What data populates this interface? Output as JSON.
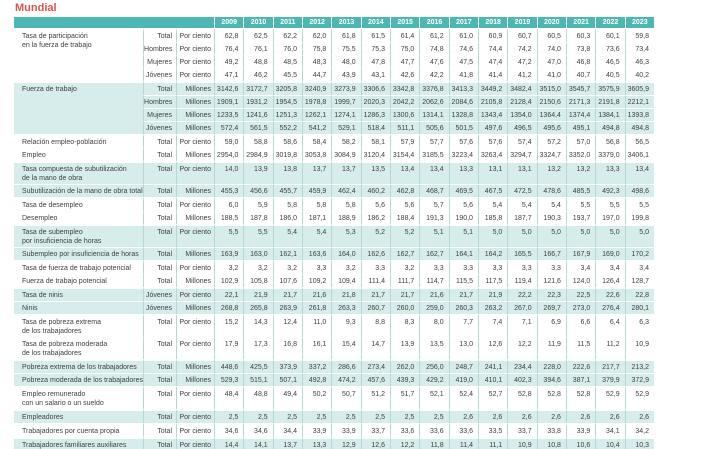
{
  "title": "Mundial",
  "theme": {
    "header_bg": "#4db7b4",
    "band_bg": "#d6edec",
    "title_color": "#d9534f",
    "text_color": "#3f3f3f",
    "grid_line": "#b7d6d8"
  },
  "table": {
    "years": [
      "2009",
      "2010",
      "2011",
      "2012",
      "2013",
      "2014",
      "2015",
      "2016",
      "2017",
      "2018",
      "2019",
      "2020",
      "2021",
      "2022",
      "2023"
    ],
    "rows": [
      {
        "label": "Tasa de participación\nen la fuerza de trabajo",
        "rowspan": 4,
        "group": "Total",
        "unit": "Por ciento",
        "band": false,
        "group_start": true,
        "values": [
          "62,8",
          "62,5",
          "62,2",
          "62,0",
          "61,8",
          "61,5",
          "61,4",
          "61,2",
          "61,0",
          "60,9",
          "60,7",
          "60,5",
          "60,3",
          "60,1",
          "59,8"
        ]
      },
      {
        "group": "Hombres",
        "unit": "Por ciento",
        "band": false,
        "values": [
          "76,4",
          "76,1",
          "76,0",
          "75,8",
          "75,5",
          "75,3",
          "75,0",
          "74,8",
          "74,6",
          "74,4",
          "74,2",
          "74,0",
          "73,8",
          "73,6",
          "73,4"
        ]
      },
      {
        "group": "Mujeres",
        "unit": "Por ciento",
        "band": false,
        "values": [
          "49,2",
          "48,8",
          "48,5",
          "48,3",
          "48,0",
          "47,8",
          "47,7",
          "47,6",
          "47,5",
          "47,4",
          "47,2",
          "47,0",
          "46,8",
          "46,5",
          "46,3"
        ]
      },
      {
        "group": "Jóvenes",
        "unit": "Por ciento",
        "band": false,
        "values": [
          "47,1",
          "46,2",
          "45,5",
          "44,7",
          "43,9",
          "43,1",
          "42,6",
          "42,2",
          "41,8",
          "41,4",
          "41,2",
          "41,0",
          "40,7",
          "40,5",
          "40,2"
        ]
      },
      {
        "label": "Fuerza de trabajo",
        "rowspan": 4,
        "group": "Total",
        "unit": "Millones",
        "band": true,
        "group_start": true,
        "values": [
          "3142,6",
          "3172,7",
          "3205,8",
          "3240,9",
          "3273,9",
          "3306,6",
          "3342,8",
          "3376,8",
          "3413,3",
          "3449,2",
          "3482,4",
          "3515,0",
          "3545,7",
          "3575,9",
          "3605,9"
        ]
      },
      {
        "group": "Hombres",
        "unit": "Millones",
        "band": true,
        "values": [
          "1909,1",
          "1931,2",
          "1954,5",
          "1978,8",
          "1999,7",
          "2020,3",
          "2042,2",
          "2062,6",
          "2084,6",
          "2105,8",
          "2128,4",
          "2150,6",
          "2171,3",
          "2191,8",
          "2212,1"
        ]
      },
      {
        "group": "Mujeres",
        "unit": "Millones",
        "band": true,
        "values": [
          "1233,5",
          "1241,6",
          "1251,3",
          "1262,1",
          "1274,1",
          "1286,3",
          "1300,6",
          "1314,1",
          "1328,8",
          "1343,4",
          "1354,0",
          "1364,4",
          "1374,4",
          "1384,1",
          "1393,8"
        ]
      },
      {
        "group": "Jóvenes",
        "unit": "Millones",
        "band": true,
        "values": [
          "572,4",
          "561,5",
          "552,2",
          "541,2",
          "529,1",
          "518,4",
          "511,1",
          "505,6",
          "501,5",
          "497,6",
          "496,5",
          "495,6",
          "495,1",
          "494,8",
          "494,8"
        ]
      },
      {
        "label": "Relación empleo-población",
        "group": "Total",
        "unit": "Por ciento",
        "band": false,
        "group_start": true,
        "values": [
          "59,0",
          "58,8",
          "58,6",
          "58,4",
          "58,2",
          "58,1",
          "57,9",
          "57,7",
          "57,6",
          "57,6",
          "57,4",
          "57,2",
          "57,0",
          "56,8",
          "56,5"
        ]
      },
      {
        "label": "Empleo",
        "group": "Total",
        "unit": "Millones",
        "band": false,
        "values": [
          "2954,0",
          "2984,9",
          "3019,8",
          "3053,8",
          "3084,9",
          "3120,4",
          "3154,4",
          "3185,5",
          "3223,4",
          "3263,4",
          "3294,7",
          "3324,7",
          "3352,0",
          "3379,0",
          "3406,1"
        ]
      },
      {
        "label": "Tasa compuesta de subutilización\nde la mano de obra",
        "group": "Total",
        "unit": "Por ciento",
        "band": true,
        "group_start": true,
        "values": [
          "14,0",
          "13,9",
          "13,8",
          "13,7",
          "13,7",
          "13,5",
          "13,4",
          "13,4",
          "13,3",
          "13,1",
          "13,1",
          "13,2",
          "13,2",
          "13,3",
          "13,4"
        ]
      },
      {
        "label": "Subutilización de la mano de obra total",
        "group": "Total",
        "unit": "Millones",
        "band": true,
        "values": [
          "455,3",
          "456,6",
          "455,7",
          "459,9",
          "462,4",
          "460,2",
          "462,8",
          "468,7",
          "469,5",
          "467,5",
          "472,5",
          "478,6",
          "485,5",
          "492,3",
          "498,6"
        ]
      },
      {
        "label": "Tasa de desempleo",
        "group": "Total",
        "unit": "Por ciento",
        "band": false,
        "group_start": true,
        "values": [
          "6,0",
          "5,9",
          "5,8",
          "5,8",
          "5,8",
          "5,6",
          "5,6",
          "5,7",
          "5,6",
          "5,4",
          "5,4",
          "5,4",
          "5,5",
          "5,5",
          "5,5"
        ]
      },
      {
        "label": "Desempleo",
        "group": "Total",
        "unit": "Millones",
        "band": false,
        "values": [
          "188,5",
          "187,8",
          "186,0",
          "187,1",
          "188,9",
          "186,2",
          "188,4",
          "191,3",
          "190,0",
          "185,8",
          "187,7",
          "190,3",
          "193,7",
          "197,0",
          "199,8"
        ]
      },
      {
        "label": "Tasa de subempleo\npor insuficiencia de horas",
        "group": "Total",
        "unit": "Por ciento",
        "band": true,
        "group_start": true,
        "values": [
          "5,5",
          "5,5",
          "5,4",
          "5,4",
          "5,3",
          "5,2",
          "5,2",
          "5,1",
          "5,1",
          "5,0",
          "5,0",
          "5,0",
          "5,0",
          "5,0",
          "5,0"
        ]
      },
      {
        "label": "Subempleo por insuficiencia de horas",
        "group": "Total",
        "unit": "Millones",
        "band": true,
        "values": [
          "163,9",
          "163,0",
          "162,1",
          "163,6",
          "164,0",
          "162,6",
          "162,7",
          "162,7",
          "164,1",
          "164,2",
          "165,5",
          "166,7",
          "167,9",
          "169,0",
          "170,2"
        ]
      },
      {
        "label": "Tasa de fuerza de trabajo potencial",
        "group": "Total",
        "unit": "Por ciento",
        "band": false,
        "group_start": true,
        "values": [
          "3,2",
          "3,2",
          "3,2",
          "3,3",
          "3,2",
          "3,3",
          "3,2",
          "3,3",
          "3,3",
          "3,3",
          "3,3",
          "3,3",
          "3,4",
          "3,4",
          "3,4"
        ]
      },
      {
        "label": "Fuerza de trabajo potencial",
        "group": "Total",
        "unit": "Millones",
        "band": false,
        "values": [
          "102,9",
          "105,8",
          "107,6",
          "109,2",
          "109,4",
          "111,4",
          "111,7",
          "114,7",
          "115,5",
          "117,5",
          "119,4",
          "121,6",
          "124,0",
          "126,4",
          "128,7"
        ]
      },
      {
        "label": "Tasa de ninis",
        "group": "Jóvenes",
        "unit": "Por ciento",
        "band": true,
        "group_start": true,
        "values": [
          "22,1",
          "21,9",
          "21,7",
          "21,6",
          "21,8",
          "21,7",
          "21,7",
          "21,6",
          "21,7",
          "21,9",
          "22,2",
          "22,3",
          "22,5",
          "22,6",
          "22,8"
        ]
      },
      {
        "label": "Ninis",
        "group": "Jóvenes",
        "unit": "Millones",
        "band": true,
        "values": [
          "268,8",
          "265,8",
          "263,9",
          "261,8",
          "263,3",
          "260,7",
          "260,0",
          "259,0",
          "260,3",
          "263,2",
          "267,0",
          "269,7",
          "273,0",
          "276,4",
          "280,1"
        ]
      },
      {
        "label": "Tasa de pobreza extrema\nde los trabajadores",
        "group": "Total",
        "unit": "Por ciento",
        "band": false,
        "group_start": true,
        "values": [
          "15,2",
          "14,3",
          "12,4",
          "11,0",
          "9,3",
          "8,8",
          "8,3",
          "8,0",
          "7,7",
          "7,4",
          "7,1",
          "6,9",
          "6,6",
          "6,4",
          "6,3"
        ]
      },
      {
        "label": "Tasa de pobreza moderada\nde los trabajadores",
        "group": "Total",
        "unit": "Por ciento",
        "band": false,
        "values": [
          "17,9",
          "17,3",
          "16,8",
          "16,1",
          "15,4",
          "14,7",
          "13,9",
          "13,5",
          "13,0",
          "12,6",
          "12,2",
          "11,9",
          "11,5",
          "11,2",
          "10,9"
        ]
      },
      {
        "label": "Pobreza extrema de los trabajadores",
        "group": "Total",
        "unit": "Millones",
        "band": true,
        "group_start": true,
        "values": [
          "448,6",
          "425,5",
          "373,9",
          "337,2",
          "286,6",
          "273,4",
          "262,0",
          "256,0",
          "248,7",
          "241,1",
          "234,4",
          "228,0",
          "222,6",
          "217,7",
          "213,2"
        ]
      },
      {
        "label": "Pobreza moderada de los trabajadores",
        "group": "Total",
        "unit": "Millones",
        "band": true,
        "values": [
          "529,3",
          "515,1",
          "507,1",
          "492,8",
          "474,2",
          "457,6",
          "439,3",
          "429,2",
          "419,0",
          "410,1",
          "402,3",
          "394,6",
          "387,1",
          "379,9",
          "372,9"
        ]
      },
      {
        "label": "Empleo remunerado\ncon un salario o un sueldo",
        "group": "Total",
        "unit": "Por ciento",
        "band": false,
        "group_start": true,
        "values": [
          "48,4",
          "48,8",
          "49,4",
          "50,2",
          "50,7",
          "51,2",
          "51,7",
          "52,1",
          "52,4",
          "52,7",
          "52,8",
          "52,8",
          "52,8",
          "52,9",
          "52,9"
        ]
      },
      {
        "label": "Empleadores",
        "group": "Total",
        "unit": "Por ciento",
        "band": true,
        "group_start": true,
        "values": [
          "2,5",
          "2,5",
          "2,5",
          "2,5",
          "2,5",
          "2,5",
          "2,5",
          "2,5",
          "2,6",
          "2,6",
          "2,6",
          "2,6",
          "2,6",
          "2,6",
          "2,6"
        ]
      },
      {
        "label": "Trabajadores por cuenta propia",
        "group": "Total",
        "unit": "Por ciento",
        "band": false,
        "group_start": true,
        "values": [
          "34,6",
          "34,6",
          "34,4",
          "33,9",
          "33,9",
          "33,7",
          "33,6",
          "33,6",
          "33,6",
          "33,5",
          "33,7",
          "33,8",
          "33,9",
          "34,1",
          "34,2"
        ]
      },
      {
        "label": "Trabajadores familiares auxiliares",
        "group": "Total",
        "unit": "Por ciento",
        "band": true,
        "group_start": true,
        "values": [
          "14,4",
          "14,1",
          "13,7",
          "13,3",
          "12,9",
          "12,6",
          "12,2",
          "11,8",
          "11,4",
          "11,1",
          "10,9",
          "10,8",
          "10,6",
          "10,4",
          "10,3"
        ]
      }
    ]
  }
}
